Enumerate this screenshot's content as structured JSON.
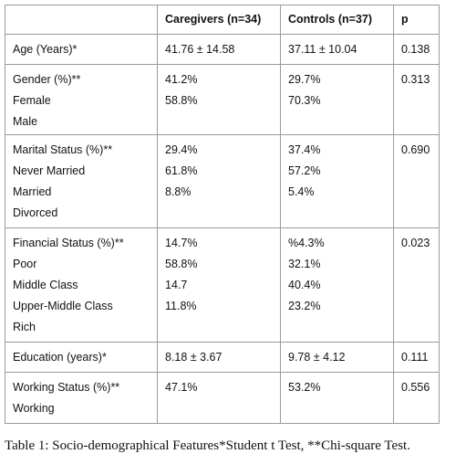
{
  "table": {
    "header": [
      "",
      "Caregivers (n=34)",
      "Controls (n=37)",
      "p"
    ],
    "rows": [
      [
        [
          "Age (Years)*"
        ],
        [
          "41.76 ± 14.58"
        ],
        [
          "37.11 ± 10.04"
        ],
        [
          "0.138"
        ]
      ],
      [
        [
          "Gender (%)**",
          "Female",
          "Male"
        ],
        [
          "41.2%",
          "58.8%"
        ],
        [
          "29.7%",
          "70.3%"
        ],
        [
          "0.313"
        ]
      ],
      [
        [
          "Marital Status (%)**",
          "Never Married",
          "Married",
          "Divorced"
        ],
        [
          "29.4%",
          "61.8%",
          "8.8%"
        ],
        [
          "37.4%",
          "57.2%",
          "5.4%"
        ],
        [
          "0.690"
        ]
      ],
      [
        [
          "Financial Status (%)**",
          "Poor",
          "Middle Class",
          "Upper-Middle Class",
          "Rich"
        ],
        [
          "14.7%",
          "58.8%",
          "14.7",
          "11.8%"
        ],
        [
          "%4.3%",
          "32.1%",
          "40.4%",
          "23.2%"
        ],
        [
          "0.023"
        ]
      ],
      [
        [
          "Education (years)*"
        ],
        [
          "8.18 ± 3.67"
        ],
        [
          "9.78 ± 4.12"
        ],
        [
          "0.111"
        ]
      ],
      [
        [
          "Working Status (%)**",
          "Working"
        ],
        [
          "47.1%"
        ],
        [
          "53.2%"
        ],
        [
          "0.556"
        ]
      ]
    ]
  },
  "caption": "Table 1: Socio-demographical Features*Student t Test, **Chi-square Test."
}
